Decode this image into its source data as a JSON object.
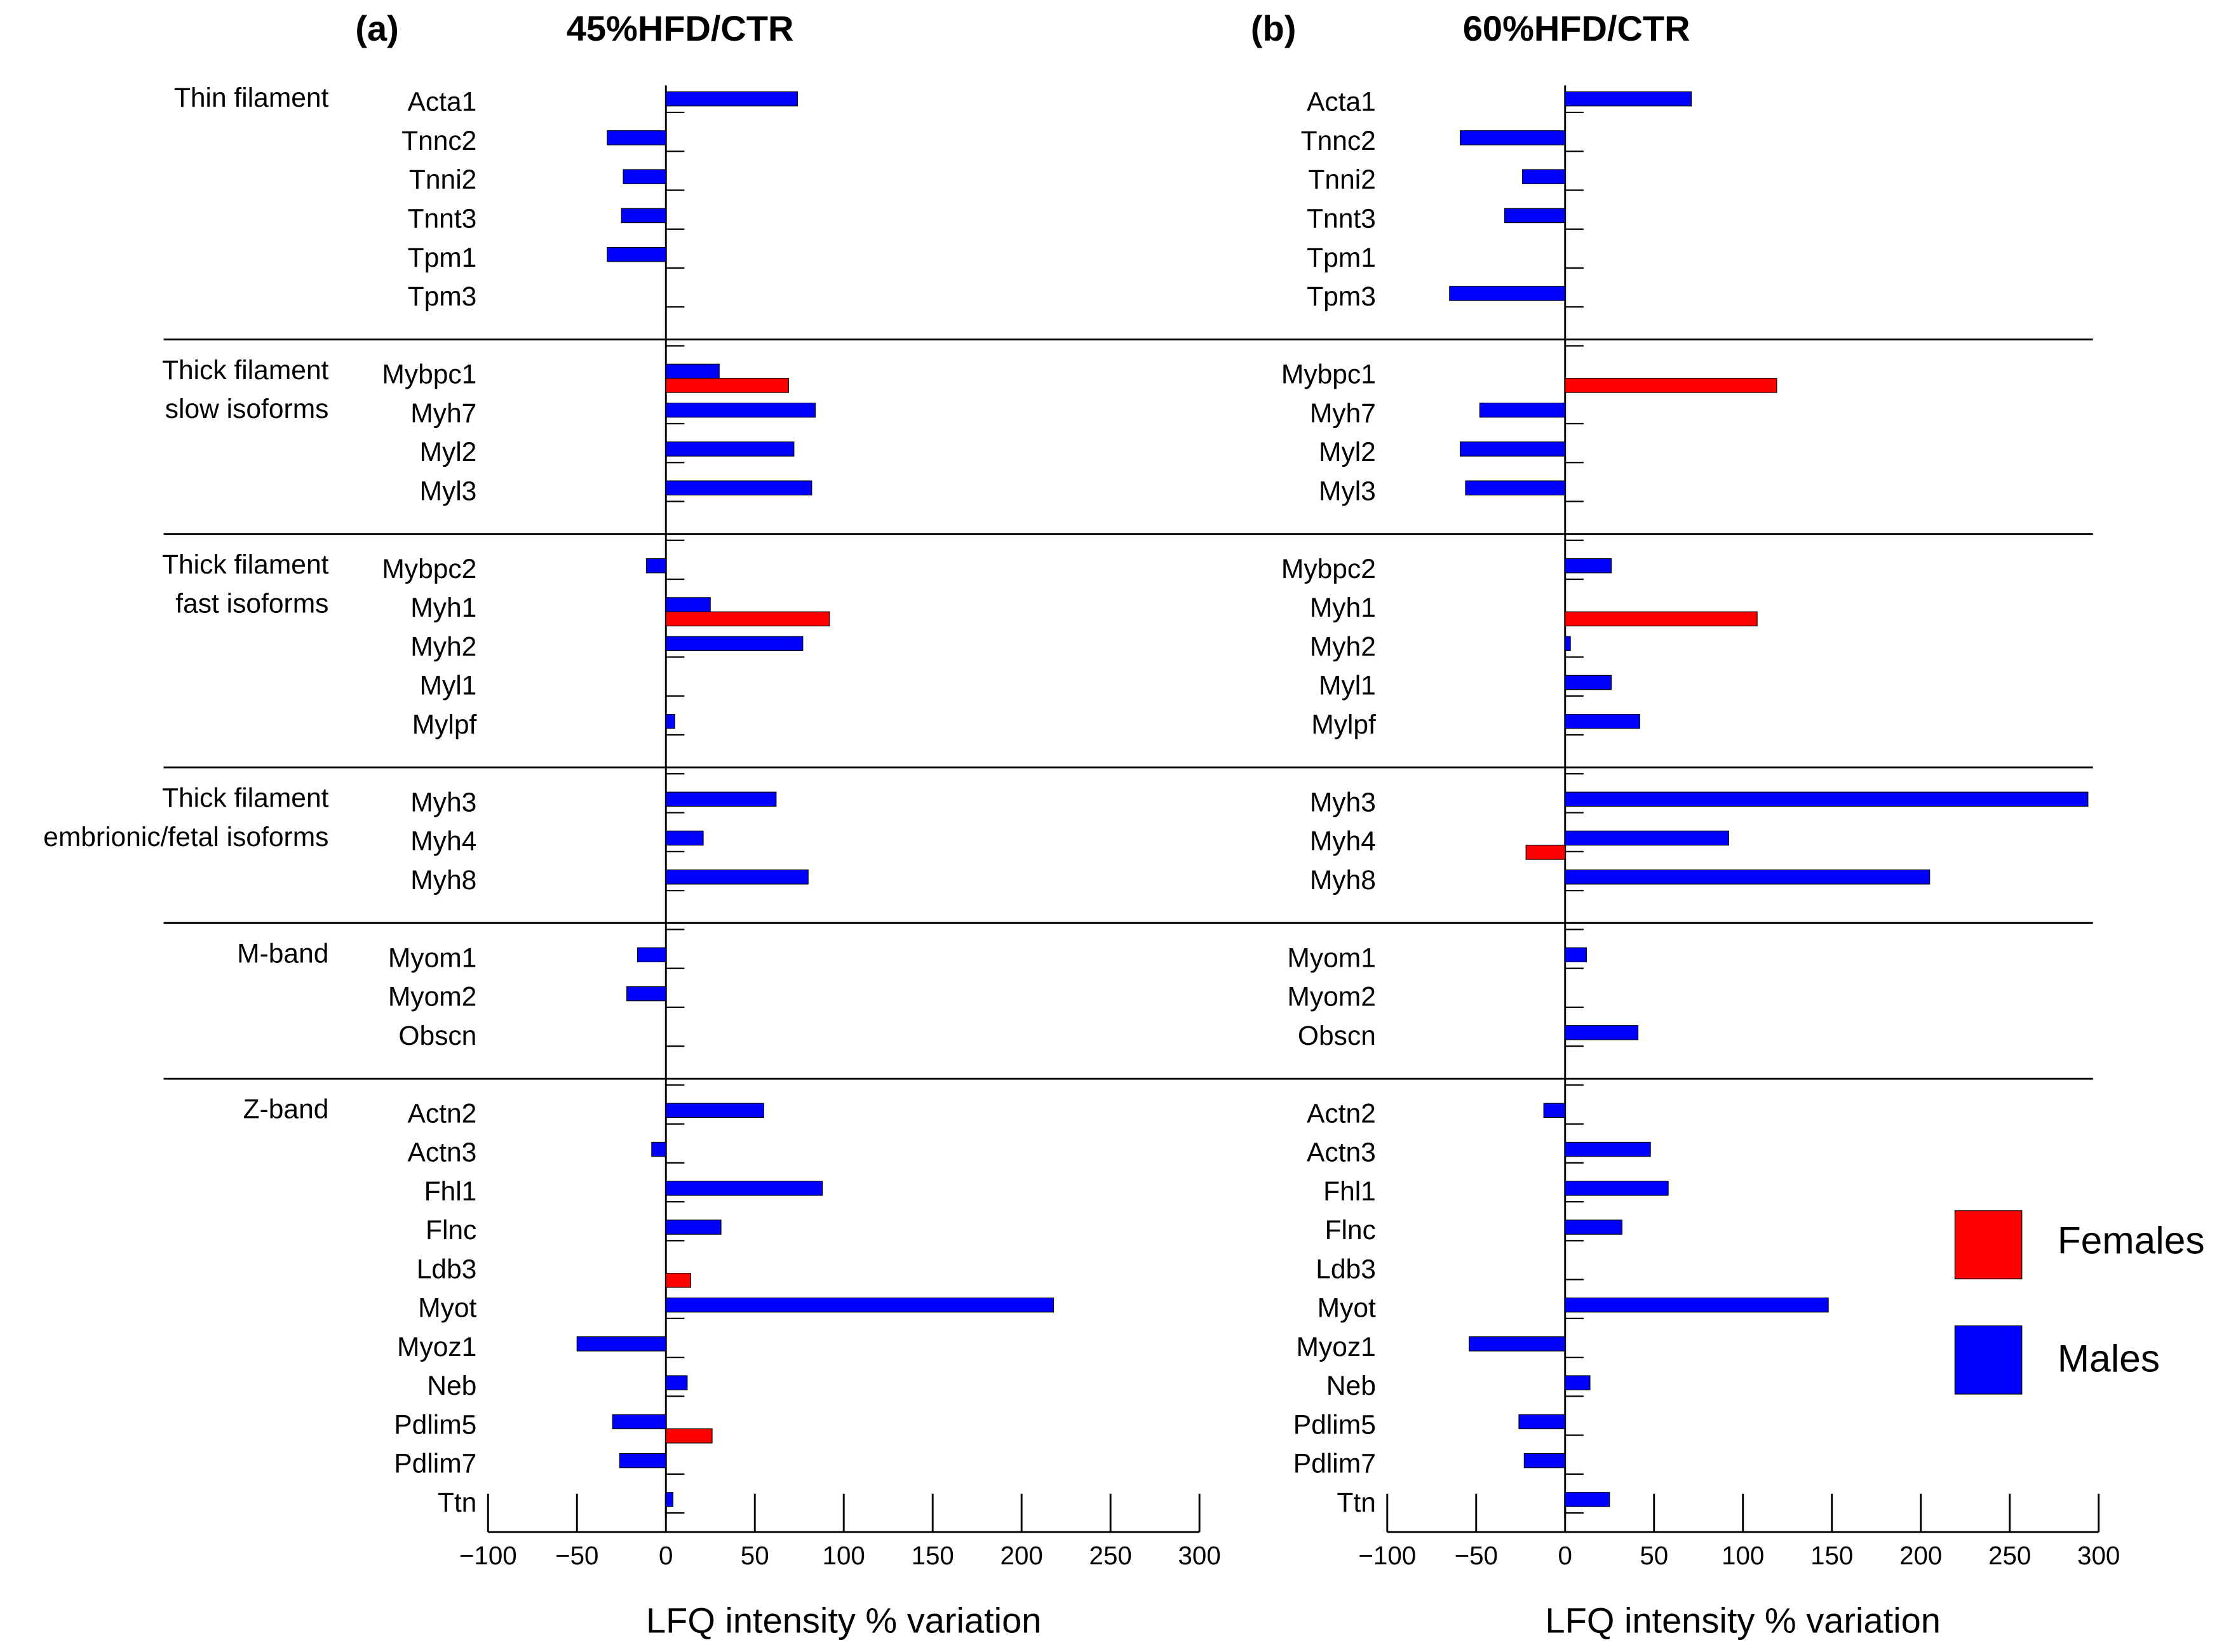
{
  "groups": [
    {
      "label": [
        "Thin filament"
      ],
      "categories": [
        "Acta1",
        "Tnnc2",
        "Tnni2",
        "Tnnt3",
        "Tpm1",
        "Tpm3"
      ]
    },
    {
      "label": [
        "Thick filament",
        "slow isoforms"
      ],
      "categories": [
        "Mybpc1",
        "Myh7",
        "Myl2",
        "Myl3"
      ]
    },
    {
      "label": [
        "Thick filament",
        "fast isoforms"
      ],
      "categories": [
        "Mybpc2",
        "Myh1",
        "Myh2",
        "Myl1",
        "Mylpf"
      ]
    },
    {
      "label": [
        "Thick filament",
        "embrionic/fetal isoforms"
      ],
      "categories": [
        "Myh3",
        "Myh4",
        "Myh8"
      ]
    },
    {
      "label": [
        "M-band"
      ],
      "categories": [
        "Myom1",
        "Myom2",
        "Obscn"
      ]
    },
    {
      "label": [
        "Z-band"
      ],
      "categories": [
        "Actn2",
        "Actn3",
        "Fhl1",
        "Flnc",
        "Ldb3",
        "Myot",
        "Myoz1",
        "Neb",
        "Pdlim5",
        "Pdlim7",
        "Ttn"
      ]
    }
  ],
  "legend": [
    {
      "name": "Females",
      "color": "#ff0000"
    },
    {
      "name": "Males",
      "color": "#0000ff"
    }
  ],
  "chart_data": [
    {
      "type": "bar",
      "orientation": "horizontal",
      "panel": "(a)",
      "title": "45%HFD/CTR",
      "x_label": "LFQ intensity % variation",
      "xlim": [
        -100,
        300
      ],
      "xticks": [
        {
          "value": -100,
          "label": "−100"
        },
        {
          "value": -50,
          "label": "−50"
        },
        0,
        50,
        100,
        150,
        200,
        250,
        300
      ],
      "series": [
        {
          "values": [
            null,
            null,
            null,
            null,
            null,
            null,
            69,
            null,
            null,
            null,
            null,
            92,
            null,
            null,
            null,
            null,
            null,
            null,
            null,
            null,
            null,
            null,
            null,
            null,
            null,
            14,
            null,
            null,
            null,
            26,
            null,
            null
          ]
        },
        {
          "values": [
            74,
            -33,
            -24,
            -25,
            -33,
            null,
            30,
            84,
            72,
            82,
            -11,
            25,
            77,
            null,
            5,
            62,
            21,
            80,
            -16,
            -22,
            null,
            55,
            -8,
            88,
            31,
            null,
            218,
            -50,
            12,
            -30,
            -26,
            4
          ]
        }
      ]
    },
    {
      "type": "bar",
      "orientation": "horizontal",
      "panel": "(b)",
      "title": "60%HFD/CTR",
      "x_label": "LFQ intensity % variation",
      "xlim": [
        -100,
        300
      ],
      "xticks": [
        {
          "value": -100,
          "label": "−100"
        },
        {
          "value": -50,
          "label": "−50"
        },
        0,
        50,
        100,
        150,
        200,
        250,
        300
      ],
      "series": [
        {
          "values": [
            null,
            null,
            null,
            null,
            null,
            null,
            119,
            null,
            null,
            null,
            null,
            108,
            null,
            null,
            null,
            null,
            -22,
            null,
            null,
            null,
            null,
            null,
            null,
            null,
            null,
            null,
            null,
            null,
            null,
            null,
            null,
            null
          ]
        },
        {
          "values": [
            71,
            -59,
            -24,
            -34,
            null,
            -65,
            null,
            -48,
            -59,
            -56,
            26,
            null,
            3,
            26,
            42,
            294,
            92,
            205,
            12,
            null,
            41,
            -12,
            48,
            58,
            32,
            null,
            148,
            -54,
            14,
            -26,
            -23,
            25
          ]
        }
      ]
    }
  ]
}
